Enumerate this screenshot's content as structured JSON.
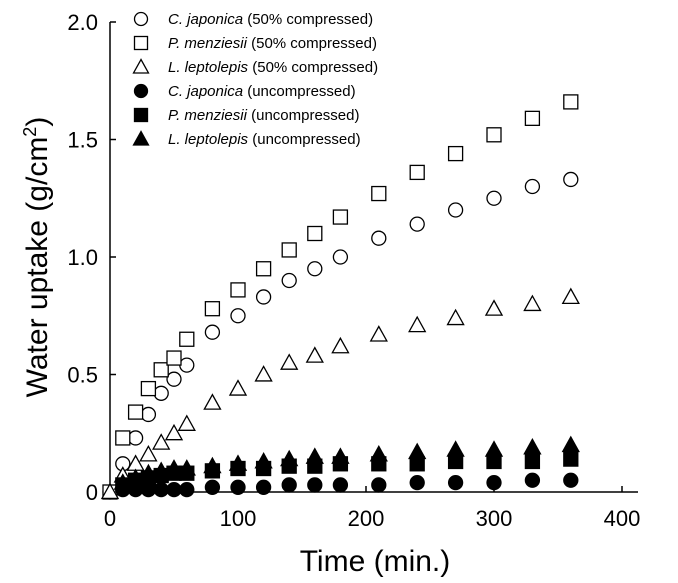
{
  "chart_data": {
    "type": "scatter",
    "xlabel": "Time (min.)",
    "ylabel": {
      "main": "Water uptake (g/cm",
      "sup": "2",
      "close": ")"
    },
    "xlim": [
      0,
      400
    ],
    "ylim": [
      0,
      2.0
    ],
    "xticks": [
      "0",
      "100",
      "200",
      "300",
      "400"
    ],
    "yticks": [
      "0",
      "0.5",
      "1.0",
      "1.5",
      "2.0"
    ],
    "grid": false,
    "legend_position": "top-left",
    "series": [
      {
        "species": "C. japonica",
        "condition": "(50% compressed)",
        "marker": "circle",
        "filled": false,
        "x": [
          0,
          10,
          20,
          30,
          40,
          50,
          60,
          80,
          100,
          120,
          140,
          160,
          180,
          210,
          240,
          270,
          300,
          330,
          360
        ],
        "y": [
          0.0,
          0.12,
          0.23,
          0.33,
          0.42,
          0.48,
          0.54,
          0.68,
          0.75,
          0.83,
          0.9,
          0.95,
          1.0,
          1.08,
          1.14,
          1.2,
          1.25,
          1.3,
          1.33
        ]
      },
      {
        "species": "P. menziesii",
        "condition": "(50% compressed)",
        "marker": "square",
        "filled": false,
        "x": [
          0,
          10,
          20,
          30,
          40,
          50,
          60,
          80,
          100,
          120,
          140,
          160,
          180,
          210,
          240,
          270,
          300,
          330,
          360
        ],
        "y": [
          0.0,
          0.23,
          0.34,
          0.44,
          0.52,
          0.57,
          0.65,
          0.78,
          0.86,
          0.95,
          1.03,
          1.1,
          1.17,
          1.27,
          1.36,
          1.44,
          1.52,
          1.59,
          1.66
        ]
      },
      {
        "species": "L. leptolepis",
        "condition": "(50% compressed)",
        "marker": "triangle",
        "filled": false,
        "x": [
          0,
          10,
          20,
          30,
          40,
          50,
          60,
          80,
          100,
          120,
          140,
          160,
          180,
          210,
          240,
          270,
          300,
          330,
          360
        ],
        "y": [
          0.0,
          0.07,
          0.12,
          0.16,
          0.21,
          0.25,
          0.29,
          0.38,
          0.44,
          0.5,
          0.55,
          0.58,
          0.62,
          0.67,
          0.71,
          0.74,
          0.78,
          0.8,
          0.83
        ]
      },
      {
        "species": "C. japonica",
        "condition": "(uncompressed)",
        "marker": "circle",
        "filled": true,
        "x": [
          10,
          20,
          30,
          40,
          50,
          60,
          80,
          100,
          120,
          140,
          160,
          180,
          210,
          240,
          270,
          300,
          330,
          360
        ],
        "y": [
          0.01,
          0.01,
          0.01,
          0.01,
          0.01,
          0.01,
          0.02,
          0.02,
          0.02,
          0.03,
          0.03,
          0.03,
          0.03,
          0.04,
          0.04,
          0.04,
          0.05,
          0.05
        ]
      },
      {
        "species": "P. menziesii",
        "condition": "(uncompressed)",
        "marker": "square",
        "filled": true,
        "x": [
          10,
          20,
          30,
          40,
          50,
          60,
          80,
          100,
          120,
          140,
          160,
          180,
          210,
          240,
          270,
          300,
          330,
          360
        ],
        "y": [
          0.03,
          0.05,
          0.06,
          0.07,
          0.08,
          0.08,
          0.09,
          0.1,
          0.1,
          0.11,
          0.11,
          0.12,
          0.12,
          0.12,
          0.13,
          0.13,
          0.13,
          0.14
        ]
      },
      {
        "species": "L. leptolepis",
        "condition": "(uncompressed)",
        "marker": "triangle",
        "filled": true,
        "x": [
          10,
          20,
          30,
          40,
          50,
          60,
          80,
          100,
          120,
          140,
          160,
          180,
          210,
          240,
          270,
          300,
          330,
          360
        ],
        "y": [
          0.04,
          0.06,
          0.08,
          0.09,
          0.1,
          0.1,
          0.11,
          0.12,
          0.13,
          0.14,
          0.15,
          0.15,
          0.16,
          0.17,
          0.18,
          0.18,
          0.19,
          0.2
        ]
      }
    ]
  }
}
